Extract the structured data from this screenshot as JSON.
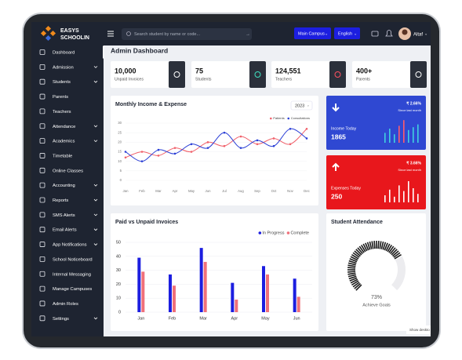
{
  "header": {
    "logo_line1": "EASYS",
    "logo_line2": "SCHOOLIN",
    "search_placeholder": "Search student by name or code...",
    "campus_button": "Main Campus",
    "language_button": "English",
    "user_name": "Altaf"
  },
  "sidebar": {
    "items": [
      {
        "label": "Dashboard",
        "has_submenu": false
      },
      {
        "label": "Admission",
        "has_submenu": true
      },
      {
        "label": "Students",
        "has_submenu": true
      },
      {
        "label": "Parents",
        "has_submenu": false
      },
      {
        "label": "Teachers",
        "has_submenu": false
      },
      {
        "label": "Attendance",
        "has_submenu": true
      },
      {
        "label": "Academics",
        "has_submenu": true
      },
      {
        "label": "Timetable",
        "has_submenu": false
      },
      {
        "label": "Online Classes",
        "has_submenu": false
      },
      {
        "label": "Accounting",
        "has_submenu": true
      },
      {
        "label": "Reports",
        "has_submenu": true
      },
      {
        "label": "SMS Alerts",
        "has_submenu": true
      },
      {
        "label": "Email Alerts",
        "has_submenu": true
      },
      {
        "label": "App Notifications",
        "has_submenu": true
      },
      {
        "label": "School Noticeboard",
        "has_submenu": false
      },
      {
        "label": "Internal Messaging",
        "has_submenu": false
      },
      {
        "label": "Manage Campuses",
        "has_submenu": false
      },
      {
        "label": "Admin Roles",
        "has_submenu": false
      },
      {
        "label": "Settings",
        "has_submenu": true
      }
    ]
  },
  "page_title": "Admin Dashboard",
  "stats": [
    {
      "value": "10,000",
      "label": "Unpaid Invoices"
    },
    {
      "value": "75",
      "label": "Students"
    },
    {
      "value": "124,551",
      "label": "Teachers"
    },
    {
      "value": "400+",
      "label": "Parents"
    }
  ],
  "income_card": {
    "change": "₹ 2.66%",
    "note": "Since last month",
    "label": "Income Today",
    "value": 1865,
    "color": "#2f48d2",
    "bars": [
      14,
      20,
      12,
      24,
      32,
      18,
      22,
      26
    ],
    "bar_colors": [
      "#3fd0e0",
      "#3fd0e0",
      "#3fd0e0",
      "#ff5b6b",
      "#ff5b6b",
      "#3fd0e0",
      "#3fd0e0",
      "#3fd0e0"
    ]
  },
  "expense_card": {
    "change": "₹ 3.66%",
    "note": "Since last month",
    "label": "Expenses Today",
    "value": 250,
    "color": "#e8171c",
    "bars": [
      10,
      18,
      8,
      24,
      16,
      30,
      20,
      12
    ],
    "bar_colors": [
      "#ffffff",
      "#ffffff",
      "#ffffff",
      "#ffffff",
      "#ffffff",
      "#ffffff",
      "#ffffff",
      "#ffffff"
    ]
  },
  "income_chart": {
    "type": "line",
    "title": "Monthly Income & Expense",
    "year_select": "2023",
    "categories": [
      "Jan",
      "Feb",
      "Mar",
      "Apr",
      "May",
      "Jun",
      "Jul",
      "Aug",
      "Sep",
      "Oct",
      "Nov",
      "Dec"
    ],
    "series": [
      {
        "name": "Patients",
        "color": "#f0606a",
        "values": [
          12,
          15,
          13,
          17,
          15,
          20,
          18,
          23,
          19,
          22,
          19,
          27
        ]
      },
      {
        "name": "Consultations",
        "color": "#2b3fd6",
        "values": [
          15,
          10,
          16,
          14,
          19,
          17,
          25,
          17,
          21,
          18,
          27,
          22
        ]
      }
    ],
    "ylim": [
      0,
      30
    ],
    "yticks": [
      0,
      5,
      10,
      15,
      20,
      25,
      30
    ],
    "grid": true
  },
  "invoices_chart": {
    "type": "bar",
    "title": "Paid vs Unpaid Invoices",
    "categories": [
      "Jan",
      "Feb",
      "Mar",
      "Apr",
      "May",
      "Jun"
    ],
    "series": [
      {
        "name": "In Progress",
        "color": "#1c1ee0",
        "values": [
          39,
          27,
          46,
          21,
          33,
          24
        ]
      },
      {
        "name": "Complete",
        "color": "#f0707a",
        "values": [
          29,
          19,
          36,
          9,
          27,
          11
        ]
      }
    ],
    "ylim": [
      0,
      50
    ],
    "yticks": [
      0,
      10,
      20,
      30,
      40,
      50
    ],
    "grid": true
  },
  "attendance": {
    "title": "Student Attendance",
    "value": 73,
    "value_label": "73%",
    "caption": "Achieve Goals"
  },
  "show_desktop": "Show deskto"
}
